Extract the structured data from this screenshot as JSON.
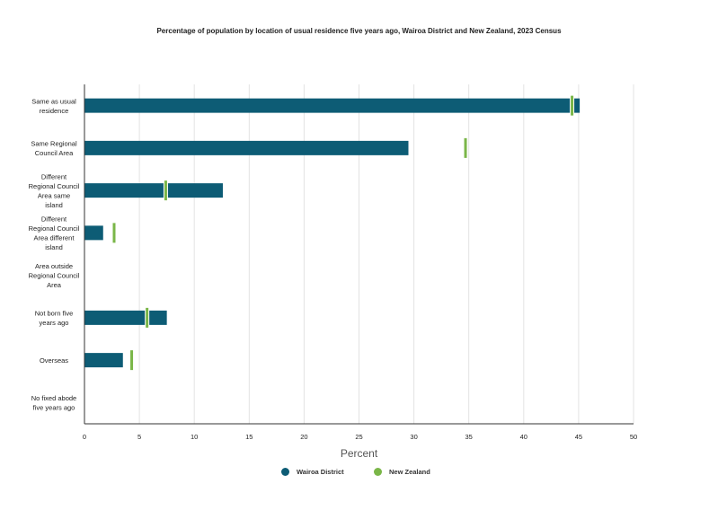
{
  "title": "Percentage of population by location of usual residence five years ago, Wairoa District and New Zealand, 2023 Census",
  "colors": {
    "wairoa": "#0d5c75",
    "nz": "#7ab648",
    "grid": "#e3e3e3",
    "axis": "#333333"
  },
  "legend": {
    "series1": "Wairoa District",
    "series2": "New Zealand"
  },
  "chart_data": {
    "type": "bar",
    "orientation": "horizontal",
    "title": "Percentage of population by location of usual residence five years ago, Wairoa District and New Zealand, 2023 Census",
    "xlabel": "Percent",
    "ylabel": "",
    "xlim": [
      0,
      50
    ],
    "xticks": [
      "0",
      "5",
      "10",
      "15",
      "20",
      "25",
      "30",
      "35",
      "40",
      "45",
      "50"
    ],
    "grid": true,
    "legend_position": "bottom",
    "categories": [
      [
        "Same as usual",
        "residence"
      ],
      [
        "Same Regional",
        "Council Area"
      ],
      [
        "Different",
        "Regional Council",
        "Area same",
        "island"
      ],
      [
        "Different",
        "Regional Council",
        "Area different",
        "island"
      ],
      [
        "Area outside",
        "Regional Council",
        "Area"
      ],
      [
        "Not born five",
        "years ago"
      ],
      [
        "Overseas"
      ],
      [
        "No fixed abode",
        "five years ago"
      ]
    ],
    "series": [
      {
        "name": "Wairoa District",
        "style": "bar",
        "values": [
          45.1,
          29.5,
          12.6,
          1.7,
          null,
          7.5,
          3.5,
          null
        ]
      },
      {
        "name": "New Zealand",
        "style": "marker",
        "values": [
          44.4,
          34.7,
          7.4,
          2.7,
          null,
          5.7,
          4.3,
          null
        ]
      }
    ]
  }
}
